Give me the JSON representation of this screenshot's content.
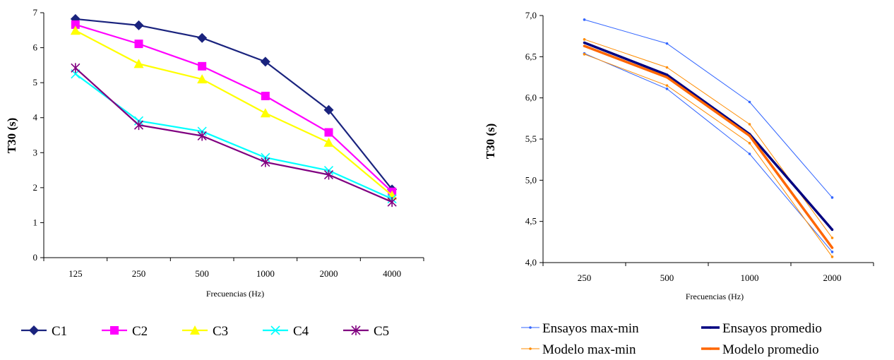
{
  "chart_data": [
    {
      "type": "line",
      "ylabel": "T30 (s)",
      "xlabel": "Frecuencias (Hz)",
      "categories": [
        "125",
        "250",
        "500",
        "1000",
        "2000",
        "4000"
      ],
      "ylim": [
        0,
        7
      ],
      "yticks": [
        "0",
        "1",
        "2",
        "3",
        "4",
        "5",
        "6",
        "7"
      ],
      "grid": false,
      "legend_position": "bottom",
      "series": [
        {
          "name": "C1",
          "color": "#1a237e",
          "marker": "diamond",
          "values": [
            6.82,
            6.64,
            6.28,
            5.6,
            4.22,
            1.95
          ]
        },
        {
          "name": "C2",
          "color": "#ff00ff",
          "marker": "square",
          "values": [
            6.66,
            6.11,
            5.47,
            4.62,
            3.58,
            1.88
          ]
        },
        {
          "name": "C3",
          "color": "#ffff00",
          "marker": "triangle",
          "values": [
            6.49,
            5.54,
            5.1,
            4.13,
            3.29,
            1.78
          ]
        },
        {
          "name": "C4",
          "color": "#00ffff",
          "marker": "x",
          "values": [
            5.25,
            3.91,
            3.61,
            2.86,
            2.49,
            1.68
          ]
        },
        {
          "name": "C5",
          "color": "#800080",
          "marker": "star",
          "values": [
            5.42,
            3.79,
            3.48,
            2.73,
            2.37,
            1.59
          ]
        }
      ]
    },
    {
      "type": "line",
      "ylabel": "T30 (s)",
      "xlabel": "Frecuencias (Hz)",
      "categories": [
        "250",
        "500",
        "1000",
        "2000"
      ],
      "ylim": [
        4.0,
        7.0
      ],
      "yticks": [
        "4,0",
        "4,5",
        "5,0",
        "5,5",
        "6,0",
        "6,5",
        "7,0"
      ],
      "grid": false,
      "legend_position": "bottom",
      "series": [
        {
          "name": "Ensayos max-min",
          "color": "#3366ff",
          "width": 1,
          "values": [
            6.95,
            6.66,
            5.95,
            4.79
          ]
        },
        {
          "name": "",
          "color": "#3366ff",
          "width": 1,
          "values": [
            6.54,
            6.11,
            5.32,
            4.13
          ]
        },
        {
          "name": "Modelo max-min",
          "color": "#ff8c00",
          "width": 1,
          "values": [
            6.71,
            6.37,
            5.68,
            4.3
          ]
        },
        {
          "name": "",
          "color": "#ff8c00",
          "width": 1,
          "values": [
            6.53,
            6.15,
            5.45,
            4.07
          ]
        },
        {
          "name": "Ensayos promedio",
          "color": "#000080",
          "width": 3.5,
          "values": [
            6.67,
            6.28,
            5.56,
            4.4
          ]
        },
        {
          "name": "Modelo promedio",
          "color": "#ff6600",
          "width": 3.5,
          "values": [
            6.63,
            6.25,
            5.54,
            4.18
          ]
        }
      ]
    }
  ]
}
